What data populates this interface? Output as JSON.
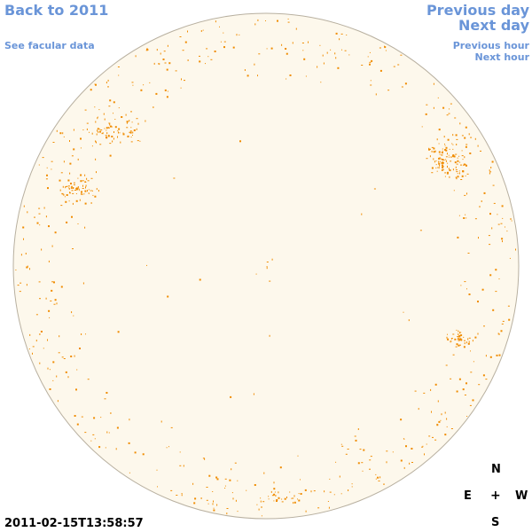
{
  "nav": {
    "back_to_year": "Back to 2011",
    "see_facular": "See facular data",
    "previous_day": "Previous day",
    "next_day": "Next day",
    "previous_hour": "Previous hour",
    "next_hour": "Next hour"
  },
  "timestamp": "2011-02-15T13:58:57",
  "compass": {
    "north": "N",
    "east": "E",
    "center": "+",
    "west": "W",
    "south": "S"
  },
  "colors": {
    "disk_fill": "#fdf8ec",
    "disk_stroke": "#b8b0a0",
    "facula": "#f08c00",
    "link": "#6a95d8"
  },
  "regions": [
    {
      "name": "upper-left cluster"
    },
    {
      "name": "left cluster"
    },
    {
      "name": "upper-right cluster"
    },
    {
      "name": "right-middle cluster"
    }
  ]
}
